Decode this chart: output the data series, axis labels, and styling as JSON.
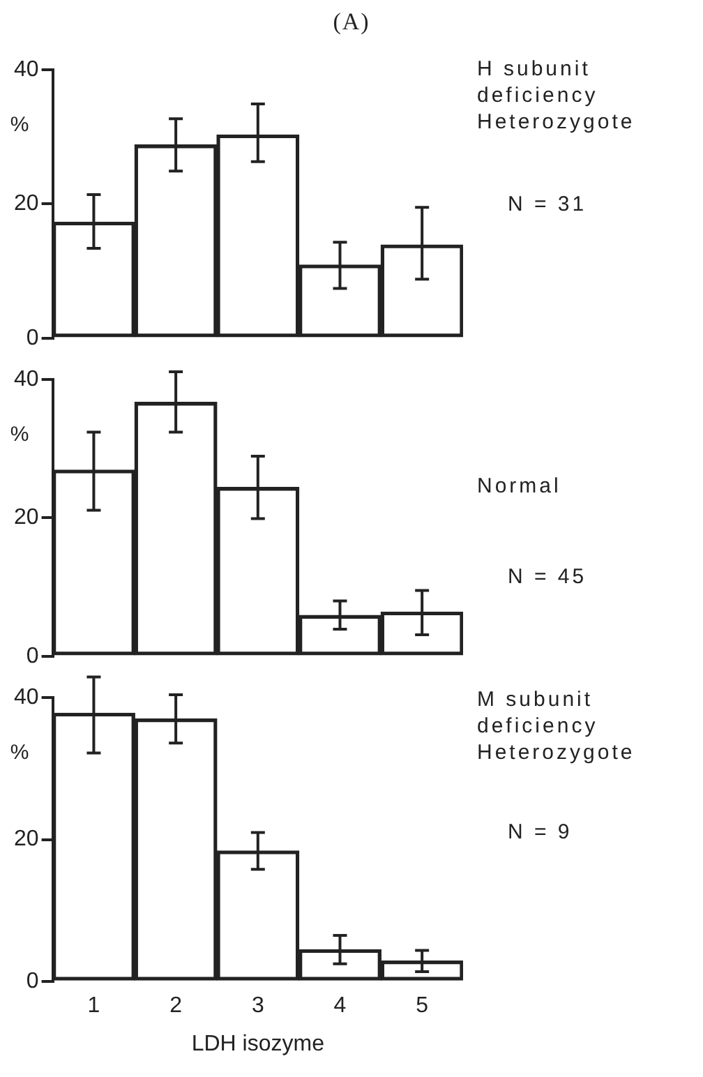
{
  "chart_data": [
    {
      "type": "bar",
      "title": "(A)",
      "categories": [
        "1",
        "2",
        "3",
        "4",
        "5"
      ],
      "ylabel": "%",
      "values": [
        17.3,
        28.8,
        30.3,
        10.9,
        13.9
      ],
      "color": "#222222",
      "errors": [
        [
          13.4,
          21.4
        ],
        [
          24.9,
          32.7
        ],
        [
          26.3,
          34.9
        ],
        [
          7.4,
          14.3
        ],
        [
          8.8,
          19.5
        ]
      ],
      "ylim": [
        0,
        40
      ],
      "yticks": [
        0,
        20,
        40
      ],
      "tick_labels": "y",
      "grid": false,
      "legend": false,
      "annotations": [
        "H subunit\ndeficiency\nHeterozygote",
        "N = 31"
      ]
    },
    {
      "type": "bar",
      "categories": [
        "1",
        "2",
        "3",
        "4",
        "5"
      ],
      "ylabel": "%",
      "values": [
        26.9,
        36.7,
        24.4,
        5.9,
        6.4
      ],
      "color": "#222222",
      "errors": [
        [
          21.1,
          32.4
        ],
        [
          32.4,
          41.1
        ],
        [
          19.9,
          28.9
        ],
        [
          3.9,
          8.0
        ],
        [
          3.1,
          9.5
        ]
      ],
      "ylim": [
        0,
        40
      ],
      "yticks": [
        0,
        20,
        40
      ],
      "tick_labels": "y",
      "grid": false,
      "legend": false,
      "annotations": [
        "Normal",
        "N = 45"
      ]
    },
    {
      "type": "bar",
      "categories": [
        "1",
        "2",
        "3",
        "4",
        "5"
      ],
      "ylabel": "%",
      "xlabel": "LDH isozyme",
      "values": [
        37.8,
        37.0,
        18.4,
        4.5,
        2.9
      ],
      "color": "#222222",
      "errors": [
        [
          32.2,
          42.9
        ],
        [
          33.6,
          40.4
        ],
        [
          15.8,
          21.0
        ],
        [
          2.5,
          6.5
        ],
        [
          1.4,
          4.4
        ]
      ],
      "ylim": [
        0,
        40
      ],
      "yticks": [
        0,
        20,
        40
      ],
      "grid": false,
      "legend": false,
      "annotations": [
        "M subunit\ndeficiency\nHeterozygote",
        "N = 9"
      ]
    }
  ]
}
